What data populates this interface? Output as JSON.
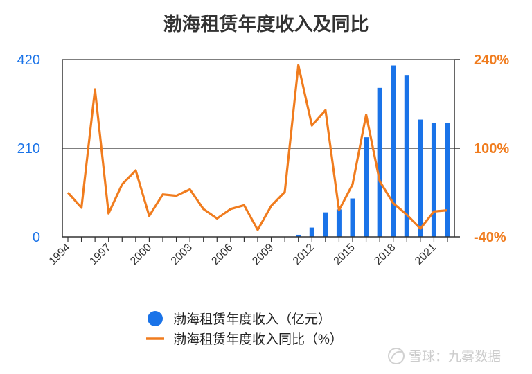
{
  "chart_data": {
    "type": "bar+line",
    "title": "渤海租赁年度收入及同比",
    "categories": [
      "1994",
      "1995",
      "1996",
      "1997",
      "1998",
      "1999",
      "2000",
      "2001",
      "2002",
      "2003",
      "2004",
      "2005",
      "2006",
      "2007",
      "2008",
      "2009",
      "2010",
      "2011",
      "2012",
      "2013",
      "2014",
      "2015",
      "2016",
      "2017",
      "2018",
      "2019",
      "2020",
      "2021",
      "2022"
    ],
    "x_tick_labels": [
      "1994",
      "1997",
      "2000",
      "2003",
      "2006",
      "2009",
      "2012",
      "2015",
      "2018",
      "2021"
    ],
    "series": [
      {
        "name": "渤海租赁年度收入（亿元）",
        "type": "bar",
        "axis": "left",
        "color": "#1a73e8",
        "values": [
          0,
          0,
          0,
          0,
          0,
          0,
          0,
          0,
          0,
          0,
          0,
          0,
          0,
          0,
          0,
          0,
          0,
          5,
          22,
          58,
          65,
          91,
          236,
          353,
          406,
          382,
          278,
          270,
          270
        ]
      },
      {
        "name": "渤海租赁年度收入同比（%）",
        "type": "line",
        "axis": "right",
        "color": "#f07c1e",
        "values": [
          30,
          6,
          193,
          -3,
          43,
          65,
          -7,
          27,
          25,
          35,
          4,
          -11,
          4,
          10,
          -29,
          9,
          31,
          231,
          136,
          160,
          2,
          43,
          153,
          48,
          13,
          -5,
          -27,
          0,
          2
        ]
      }
    ],
    "y_left": {
      "ticks": [
        "420",
        "210",
        "0"
      ],
      "ylim": [
        0,
        420
      ]
    },
    "y_right": {
      "ticks": [
        "240%",
        "100%",
        "-40%"
      ],
      "ylim": [
        -40,
        240
      ]
    },
    "legend_position": "bottom"
  },
  "watermark": {
    "text": "雪球：九雾数据",
    "icon": "snowball-logo-icon"
  }
}
